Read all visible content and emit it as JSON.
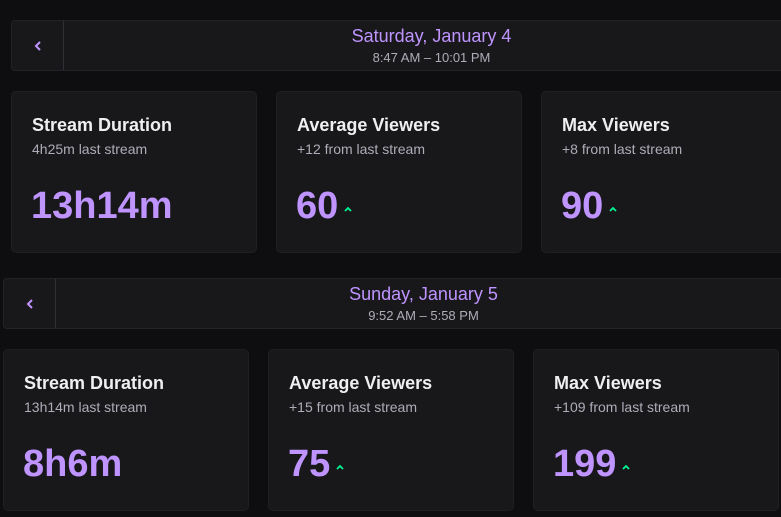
{
  "colors": {
    "accent": "#bf94ff",
    "positive": "#00f593",
    "card_bg": "#18181b",
    "page_bg": "#0e0e10"
  },
  "days": [
    {
      "date": "Saturday, January 4",
      "time_range": "8:47 AM – 10:01 PM",
      "cards": [
        {
          "title": "Stream Duration",
          "sub": "4h25m last stream",
          "value": "13h14m",
          "trend": "none"
        },
        {
          "title": "Average Viewers",
          "sub": "+12 from last stream",
          "value": "60",
          "trend": "up"
        },
        {
          "title": "Max Viewers",
          "sub": "+8 from last stream",
          "value": "90",
          "trend": "up"
        }
      ]
    },
    {
      "date": "Sunday, January 5",
      "time_range": "9:52 AM – 5:58 PM",
      "cards": [
        {
          "title": "Stream Duration",
          "sub": "13h14m last stream",
          "value": "8h6m",
          "trend": "none"
        },
        {
          "title": "Average Viewers",
          "sub": "+15 from last stream",
          "value": "75",
          "trend": "up"
        },
        {
          "title": "Max Viewers",
          "sub": "+109 from last stream",
          "value": "199",
          "trend": "up"
        }
      ]
    }
  ]
}
